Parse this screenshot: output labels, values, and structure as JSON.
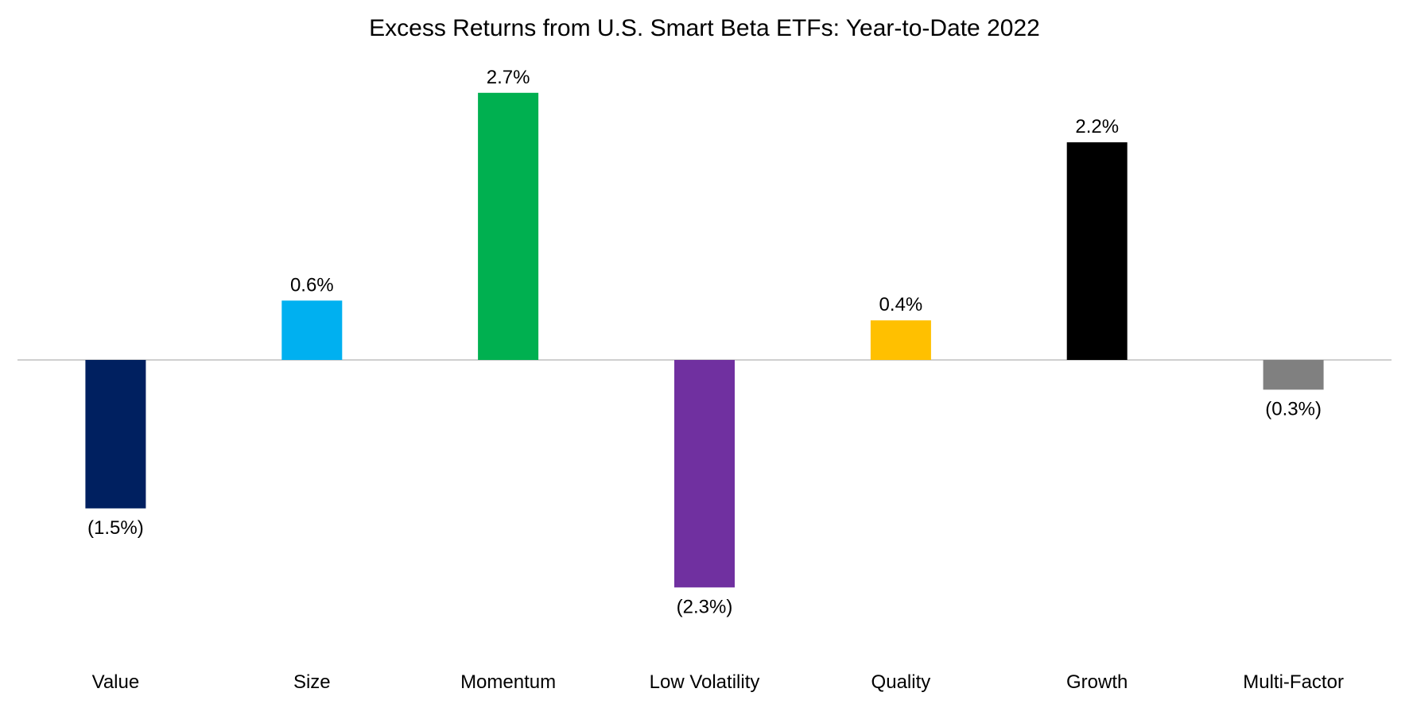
{
  "chart_data": {
    "type": "bar",
    "title": "Excess Returns from U.S. Smart Beta ETFs: Year-to-Date 2022",
    "xlabel": "",
    "ylabel": "",
    "categories": [
      "Value",
      "Size",
      "Momentum",
      "Low Volatility",
      "Quality",
      "Growth",
      "Multi-Factor"
    ],
    "values": [
      -1.5,
      0.6,
      2.7,
      -2.3,
      0.4,
      2.2,
      -0.3
    ],
    "data_labels": [
      "(1.5%)",
      "0.6%",
      "2.7%",
      "(2.3%)",
      "0.4%",
      "2.2%",
      "(0.3%)"
    ],
    "bar_colors": [
      "#002060",
      "#00B0F0",
      "#00B050",
      "#7030A0",
      "#FFC000",
      "#000000",
      "#808080"
    ],
    "ylim": [
      -3.0,
      3.0
    ],
    "grid": false,
    "legend": "none",
    "baseline_color": "#BFBFBF"
  }
}
